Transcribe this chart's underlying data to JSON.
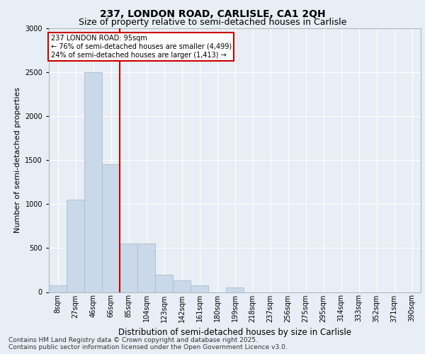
{
  "title_line1": "237, LONDON ROAD, CARLISLE, CA1 2QH",
  "title_line2": "Size of property relative to semi-detached houses in Carlisle",
  "xlabel": "Distribution of semi-detached houses by size in Carlisle",
  "ylabel": "Number of semi-detached properties",
  "footer_line1": "Contains HM Land Registry data © Crown copyright and database right 2025.",
  "footer_line2": "Contains public sector information licensed under the Open Government Licence v3.0.",
  "annotation_title": "237 LONDON ROAD: 95sqm",
  "annotation_line2": "← 76% of semi-detached houses are smaller (4,499)",
  "annotation_line3": "24% of semi-detached houses are larger (1,413) →",
  "categories": [
    "8sqm",
    "27sqm",
    "46sqm",
    "66sqm",
    "85sqm",
    "104sqm",
    "123sqm",
    "142sqm",
    "161sqm",
    "180sqm",
    "199sqm",
    "218sqm",
    "237sqm",
    "256sqm",
    "275sqm",
    "295sqm",
    "314sqm",
    "333sqm",
    "352sqm",
    "371sqm",
    "390sqm"
  ],
  "bar_heights": [
    75,
    1050,
    2500,
    1450,
    550,
    550,
    200,
    130,
    75,
    0,
    55,
    0,
    0,
    0,
    0,
    0,
    0,
    0,
    0,
    0,
    0
  ],
  "bar_color": "#c9d9e9",
  "bar_edge_color": "#aabccc",
  "vline_pos": 3.5,
  "vline_color": "#cc0000",
  "ylim": [
    0,
    3000
  ],
  "yticks": [
    0,
    500,
    1000,
    1500,
    2000,
    2500,
    3000
  ],
  "background_color": "#e8eef5",
  "annotation_box_color": "#ffffff",
  "annotation_box_edge": "#cc0000",
  "grid_color": "#ffffff",
  "title_fontsize": 10,
  "subtitle_fontsize": 9,
  "ylabel_fontsize": 8,
  "xlabel_fontsize": 8.5,
  "tick_fontsize": 7,
  "footer_fontsize": 6.5
}
